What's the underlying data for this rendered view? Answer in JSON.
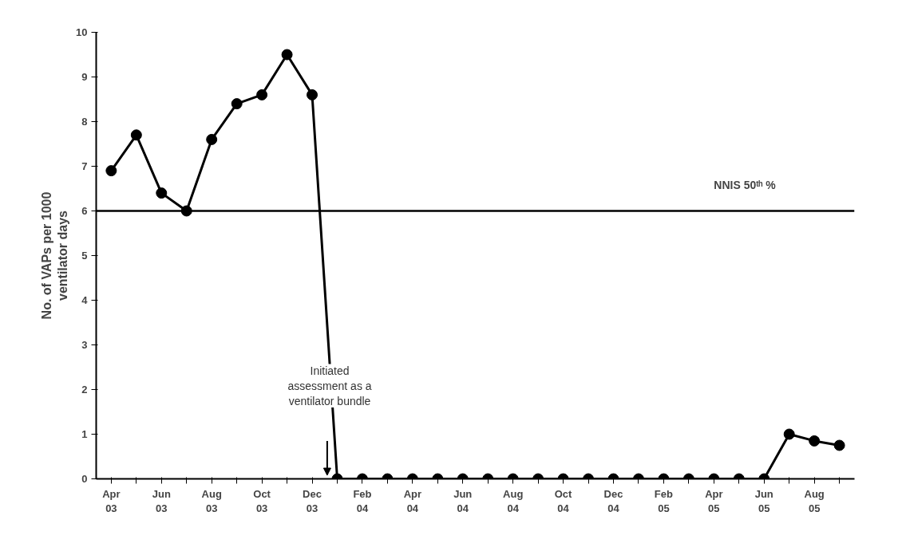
{
  "chart_data": {
    "type": "line",
    "ylabel": "No. of VAPs per 1000\nventilator days",
    "categories": [
      "Apr\n03",
      null,
      "Jun\n03",
      null,
      "Aug\n03",
      null,
      "Oct\n03",
      null,
      "Dec\n03",
      null,
      "Feb\n04",
      null,
      "Apr\n04",
      null,
      "Jun\n04",
      null,
      "Aug\n04",
      null,
      "Oct\n04",
      null,
      "Dec\n04",
      null,
      "Feb\n05",
      null,
      "Apr\n05",
      null,
      "Jun\n05",
      null,
      "Aug\n05",
      null
    ],
    "series": [
      {
        "color": "#000000",
        "values": [
          6.9,
          7.7,
          6.4,
          6.0,
          7.6,
          8.4,
          8.6,
          9.5,
          8.6,
          0,
          0,
          0,
          0,
          0,
          0,
          0,
          0,
          0,
          0,
          0,
          0,
          0,
          0,
          0,
          0,
          0,
          0,
          1.0,
          0.85,
          0.75
        ]
      }
    ],
    "ylim": [
      0,
      10
    ],
    "yticks": [
      0,
      1,
      2,
      3,
      4,
      5,
      6,
      7,
      8,
      9,
      10
    ],
    "ref_lines": [
      {
        "axis": "y",
        "value": 6,
        "label": "NNIS 50ᵗʰ %",
        "color": "#000000"
      }
    ],
    "annotations": [
      "Initiated\nassessment as a\nventilator bundle"
    ],
    "marker": "circle",
    "grid": false
  }
}
